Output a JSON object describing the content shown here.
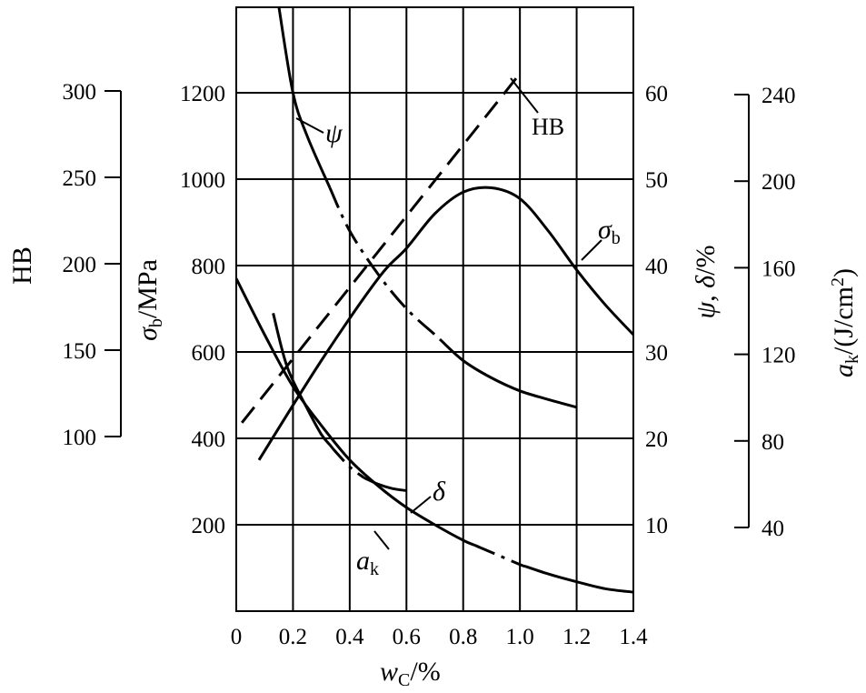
{
  "chart_data": {
    "type": "line",
    "xlabel": {
      "main": "w",
      "sub": "C",
      "unit": "/%"
    },
    "x_ticks": [
      "0",
      "0.2",
      "0.4",
      "0.6",
      "0.8",
      "1.0",
      "1.2",
      "1.4"
    ],
    "xlim": [
      0,
      1.4
    ],
    "axes": {
      "sigma_b": {
        "label_main": "σ",
        "label_sub": "b",
        "label_unit": "/MPa",
        "ticks": [
          "200",
          "400",
          "600",
          "800",
          "1000",
          "1200"
        ],
        "range": [
          0,
          1400
        ]
      },
      "HB": {
        "label": "HB",
        "ticks": [
          "100",
          "150",
          "200",
          "250",
          "300"
        ],
        "range": [
          100,
          300
        ]
      },
      "psi_delta": {
        "label_main": "ψ",
        "label_sep": ", ",
        "label_main2": "δ",
        "label_unit": "/%",
        "ticks": [
          "10",
          "20",
          "30",
          "40",
          "50",
          "60"
        ],
        "range": [
          0,
          70
        ]
      },
      "ak": {
        "label_main": "a",
        "label_sub": "k",
        "label_unit": "/(J/cm",
        "label_sup": "2",
        "label_close": ")",
        "ticks": [
          "40",
          "80",
          "120",
          "160",
          "200",
          "240"
        ],
        "range": [
          40,
          240
        ]
      }
    },
    "series": [
      {
        "name": "HB",
        "label": "HB",
        "axis": "HB",
        "style": "dashed",
        "x": [
          0.02,
          1.0
        ],
        "y": [
          108,
          310
        ]
      },
      {
        "name": "σb",
        "label_main": "σ",
        "label_sub": "b",
        "axis": "sigma_b",
        "style": "solid",
        "x": [
          0.08,
          0.3,
          0.5,
          0.6,
          0.7,
          0.8,
          0.9,
          1.0,
          1.1,
          1.2,
          1.3,
          1.4
        ],
        "y": [
          350,
          580,
          770,
          840,
          920,
          970,
          980,
          955,
          880,
          790,
          710,
          640
        ]
      },
      {
        "name": "ψ",
        "label": "ψ",
        "axis": "psi_delta",
        "style": "solid-dashdot",
        "x": [
          0.15,
          0.2,
          0.25,
          0.33,
          0.4,
          0.5,
          0.6,
          0.7,
          0.8,
          0.9,
          1.0,
          1.1,
          1.2
        ],
        "y": [
          70,
          60,
          55,
          49,
          44,
          39,
          35,
          32,
          29,
          27,
          25.5,
          24.5,
          23.6
        ],
        "dashdot_range": [
          0.33,
          0.72
        ]
      },
      {
        "name": "δ",
        "label": "δ",
        "axis": "psi_delta",
        "style": "solid-dashdot",
        "x": [
          0,
          0.1,
          0.2,
          0.3,
          0.4,
          0.5,
          0.6,
          0.7,
          0.8,
          0.9,
          1.0,
          1.1,
          1.2,
          1.3,
          1.4
        ],
        "y": [
          38.5,
          32,
          26,
          21.5,
          17.5,
          14.5,
          12,
          10,
          8.2,
          6.8,
          5.4,
          4.3,
          3.4,
          2.6,
          2.2
        ],
        "dashdot_range": [
          0.84,
          1.02
        ]
      },
      {
        "name": "ak",
        "label_main": "a",
        "label_sub": "k",
        "axis": "ak",
        "style": "solid-dashdot",
        "x": [
          0.13,
          0.18,
          0.25,
          0.3,
          0.35,
          0.4,
          0.45,
          0.5,
          0.55,
          0.6
        ],
        "y": [
          139,
          114,
          95,
          83,
          75,
          68,
          63,
          60,
          58,
          57
        ],
        "dashdot_range": [
          0.33,
          0.45
        ]
      }
    ]
  }
}
